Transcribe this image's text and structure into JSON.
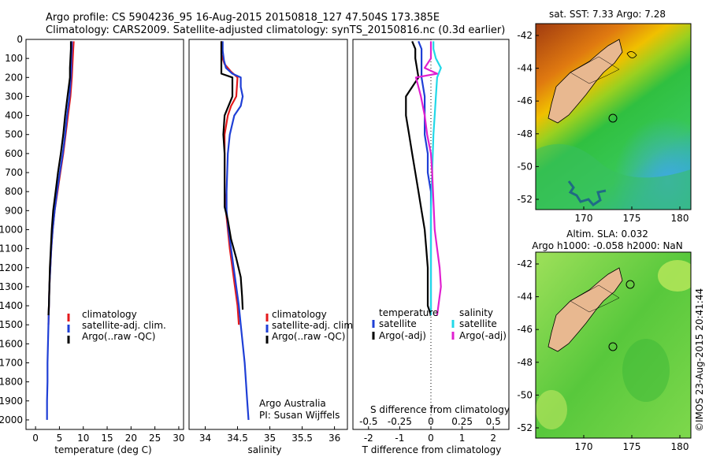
{
  "title": {
    "line1": "Argo profile: CS 5904236_95 16-Aug-2015 20150818_127 47.504S 173.385E",
    "line2": "Climatology: CARS2009. Satellite-adjusted climatology: synTS_20150816.nc (0.3d earlier)"
  },
  "colors": {
    "climatology": "#e41a1c",
    "satellite": "#1f3fd6",
    "argo": "#000000",
    "sal_satellite": "#22d8e8",
    "sal_argo": "#e020d0"
  },
  "chart_data": [
    {
      "type": "line",
      "name": "temperature-profile",
      "xlabel": "temperature (deg C)",
      "ylabel": "",
      "xlim": [
        -2,
        31
      ],
      "ylim": [
        2050,
        0
      ],
      "x_ticks": [
        0,
        5,
        10,
        15,
        20,
        25,
        30
      ],
      "y_ticks": [
        0,
        100,
        200,
        300,
        400,
        500,
        600,
        700,
        800,
        900,
        1000,
        1100,
        1200,
        1300,
        1400,
        1500,
        1600,
        1700,
        1800,
        1900,
        2000
      ],
      "legend": [
        "climatology",
        "satellite-adj. clim.",
        "Argo(..raw -QC)"
      ],
      "legend_position": "lower-center",
      "series": [
        {
          "name": "climatology",
          "color": "#e41a1c",
          "points": [
            [
              8.0,
              10
            ],
            [
              7.9,
              50
            ],
            [
              7.8,
              100
            ],
            [
              7.7,
              150
            ],
            [
              7.6,
              200
            ],
            [
              7.3,
              300
            ],
            [
              6.8,
              400
            ],
            [
              6.3,
              500
            ],
            [
              5.8,
              600
            ],
            [
              5.2,
              700
            ],
            [
              4.6,
              800
            ],
            [
              4.0,
              900
            ],
            [
              3.6,
              1000
            ],
            [
              3.3,
              1100
            ],
            [
              3.1,
              1200
            ],
            [
              2.9,
              1300
            ],
            [
              2.8,
              1400
            ],
            [
              2.7,
              1500
            ]
          ]
        },
        {
          "name": "satellite-adj. clim.",
          "color": "#1f3fd6",
          "points": [
            [
              7.6,
              10
            ],
            [
              7.6,
              50
            ],
            [
              7.5,
              100
            ],
            [
              7.5,
              150
            ],
            [
              7.4,
              200
            ],
            [
              7.1,
              300
            ],
            [
              6.6,
              400
            ],
            [
              6.2,
              500
            ],
            [
              5.7,
              600
            ],
            [
              5.1,
              700
            ],
            [
              4.5,
              800
            ],
            [
              4.0,
              900
            ],
            [
              3.6,
              1000
            ],
            [
              3.3,
              1100
            ],
            [
              3.1,
              1200
            ],
            [
              2.9,
              1300
            ],
            [
              2.8,
              1400
            ],
            [
              2.7,
              1500
            ],
            [
              2.6,
              1600
            ],
            [
              2.5,
              1700
            ],
            [
              2.5,
              1800
            ],
            [
              2.4,
              1900
            ],
            [
              2.4,
              2000
            ]
          ]
        },
        {
          "name": "Argo(..raw -QC)",
          "color": "#000000",
          "points": [
            [
              7.4,
              10
            ],
            [
              7.4,
              50
            ],
            [
              7.3,
              100
            ],
            [
              7.2,
              150
            ],
            [
              7.2,
              200
            ],
            [
              6.7,
              300
            ],
            [
              6.2,
              400
            ],
            [
              5.8,
              500
            ],
            [
              5.3,
              600
            ],
            [
              4.7,
              700
            ],
            [
              4.2,
              800
            ],
            [
              3.7,
              900
            ],
            [
              3.4,
              1000
            ],
            [
              3.2,
              1100
            ],
            [
              3.0,
              1200
            ],
            [
              2.9,
              1300
            ],
            [
              2.8,
              1400
            ],
            [
              2.7,
              1450
            ]
          ]
        }
      ]
    },
    {
      "type": "line",
      "name": "salinity-profile",
      "xlabel": "salinity",
      "ylabel": "",
      "xlim": [
        33.75,
        36.2
      ],
      "ylim": [
        2050,
        0
      ],
      "x_ticks": [
        34,
        34.5,
        35,
        35.5,
        36
      ],
      "legend": [
        "climatology",
        "satellite-adj. clim.",
        "Argo(..raw -QC)"
      ],
      "legend_position": "lower-right",
      "series": [
        {
          "name": "climatology",
          "color": "#e41a1c",
          "points": [
            [
              34.25,
              10
            ],
            [
              34.25,
              80
            ],
            [
              34.3,
              130
            ],
            [
              34.4,
              170
            ],
            [
              34.5,
              200
            ],
            [
              34.48,
              300
            ],
            [
              34.4,
              350
            ],
            [
              34.35,
              400
            ],
            [
              34.3,
              500
            ],
            [
              34.3,
              600
            ],
            [
              34.3,
              700
            ],
            [
              34.3,
              800
            ],
            [
              34.32,
              900
            ],
            [
              34.35,
              1000
            ],
            [
              34.38,
              1100
            ],
            [
              34.42,
              1200
            ],
            [
              34.46,
              1300
            ],
            [
              34.5,
              1400
            ],
            [
              34.52,
              1500
            ]
          ]
        },
        {
          "name": "satellite-adj. clim.",
          "color": "#1f3fd6",
          "points": [
            [
              34.27,
              10
            ],
            [
              34.27,
              60
            ],
            [
              34.29,
              110
            ],
            [
              34.32,
              150
            ],
            [
              34.42,
              180
            ],
            [
              34.55,
              200
            ],
            [
              34.55,
              250
            ],
            [
              34.58,
              300
            ],
            [
              34.55,
              350
            ],
            [
              34.45,
              400
            ],
            [
              34.38,
              500
            ],
            [
              34.35,
              600
            ],
            [
              34.34,
              700
            ],
            [
              34.33,
              800
            ],
            [
              34.33,
              900
            ],
            [
              34.36,
              1000
            ],
            [
              34.4,
              1100
            ],
            [
              34.44,
              1200
            ],
            [
              34.48,
              1300
            ],
            [
              34.52,
              1400
            ],
            [
              34.55,
              1500
            ],
            [
              34.58,
              1600
            ],
            [
              34.61,
              1700
            ],
            [
              34.63,
              1800
            ],
            [
              34.65,
              1900
            ],
            [
              34.67,
              2000
            ]
          ]
        },
        {
          "name": "Argo(..raw -QC)",
          "color": "#000000",
          "points": [
            [
              34.25,
              10
            ],
            [
              34.25,
              100
            ],
            [
              34.25,
              180
            ],
            [
              34.42,
              200
            ],
            [
              34.42,
              300
            ],
            [
              34.3,
              400
            ],
            [
              34.28,
              500
            ],
            [
              34.3,
              600
            ],
            [
              34.3,
              700
            ],
            [
              34.3,
              800
            ],
            [
              34.3,
              880
            ],
            [
              34.35,
              950
            ],
            [
              34.4,
              1050
            ],
            [
              34.48,
              1150
            ],
            [
              34.55,
              1250
            ],
            [
              34.57,
              1350
            ],
            [
              34.58,
              1420
            ]
          ]
        }
      ]
    },
    {
      "type": "line",
      "name": "difference-profile",
      "xlabel": "T difference from climatology",
      "x2label": "S difference from climatology",
      "xlim": [
        -2.5,
        2.5
      ],
      "x2lim": [
        -0.625,
        0.625
      ],
      "ylim": [
        2050,
        0
      ],
      "x_ticks": [
        -2,
        -1,
        0,
        1,
        2
      ],
      "x2_ticks": [
        "-0.5",
        "-0.25",
        "0",
        "0.25",
        "0.5"
      ],
      "legend_titles": [
        "temperature",
        "salinity"
      ],
      "legend": [
        "satellite",
        "Argo(-adj)",
        "satellite",
        "Argo(-adj)"
      ],
      "legend_position": "lower-center",
      "series": [
        {
          "name": "temperature satellite",
          "color": "#1f3fd6",
          "points": [
            [
              -0.4,
              10
            ],
            [
              -0.3,
              50
            ],
            [
              -0.3,
              100
            ],
            [
              -0.3,
              200
            ],
            [
              -0.2,
              300
            ],
            [
              -0.2,
              400
            ],
            [
              -0.2,
              500
            ],
            [
              -0.1,
              600
            ],
            [
              -0.1,
              700
            ],
            [
              0,
              800
            ],
            [
              0,
              900
            ],
            [
              0,
              1000
            ],
            [
              0,
              1100
            ],
            [
              0,
              1200
            ],
            [
              0,
              1300
            ],
            [
              0,
              1400
            ],
            [
              0,
              1450
            ]
          ]
        },
        {
          "name": "temperature Argo(-adj)",
          "color": "#000000",
          "points": [
            [
              -0.6,
              10
            ],
            [
              -0.5,
              50
            ],
            [
              -0.5,
              100
            ],
            [
              -0.4,
              200
            ],
            [
              -0.6,
              250
            ],
            [
              -0.8,
              300
            ],
            [
              -0.8,
              400
            ],
            [
              -0.7,
              500
            ],
            [
              -0.6,
              600
            ],
            [
              -0.5,
              700
            ],
            [
              -0.4,
              800
            ],
            [
              -0.3,
              900
            ],
            [
              -0.2,
              1000
            ],
            [
              -0.15,
              1100
            ],
            [
              -0.1,
              1200
            ],
            [
              -0.1,
              1300
            ],
            [
              -0.1,
              1400
            ],
            [
              0,
              1450
            ]
          ]
        },
        {
          "name": "salinity satellite",
          "color": "#22d8e8",
          "points": [
            [
              0.02,
              10
            ],
            [
              0.02,
              50
            ],
            [
              0.04,
              100
            ],
            [
              0.08,
              150
            ],
            [
              0.05,
              200
            ],
            [
              0.04,
              300
            ],
            [
              0.03,
              400
            ],
            [
              0.02,
              500
            ],
            [
              0.01,
              700
            ],
            [
              0,
              900
            ],
            [
              0,
              1100
            ],
            [
              0,
              1300
            ],
            [
              0,
              1450
            ]
          ]
        },
        {
          "name": "salinity Argo(-adj)",
          "color": "#e020d0",
          "points": [
            [
              0,
              10
            ],
            [
              0,
              100
            ],
            [
              -0.05,
              150
            ],
            [
              0.05,
              180
            ],
            [
              -0.12,
              200
            ],
            [
              -0.1,
              250
            ],
            [
              -0.08,
              300
            ],
            [
              -0.05,
              400
            ],
            [
              -0.03,
              500
            ],
            [
              0,
              600
            ],
            [
              0.01,
              700
            ],
            [
              0.03,
              1000
            ],
            [
              0.05,
              1100
            ],
            [
              0.07,
              1200
            ],
            [
              0.08,
              1300
            ],
            [
              0.06,
              1400
            ],
            [
              0.05,
              1450
            ]
          ]
        }
      ]
    }
  ],
  "maps": {
    "sst": {
      "title": "sat. SST: 7.33 Argo: 7.28",
      "lat_ticks": [
        "-42",
        "-44",
        "-46",
        "-48",
        "-50",
        "-52"
      ],
      "lon_ticks": [
        "170",
        "175",
        "180"
      ]
    },
    "sla": {
      "title_line1": "Altim. SLA: 0.032",
      "title_line2": "Argo h1000: -0.058 h2000: NaN",
      "lat_ticks": [
        "-42",
        "-44",
        "-46",
        "-48",
        "-50",
        "-52"
      ],
      "lon_ticks": [
        "170",
        "175",
        "180"
      ]
    }
  },
  "annotations": {
    "credit_line1": "Argo Australia",
    "credit_line2": "PI: Susan Wijffels",
    "watermark": "©IMOS 23-Aug-2015 20:41:44"
  }
}
